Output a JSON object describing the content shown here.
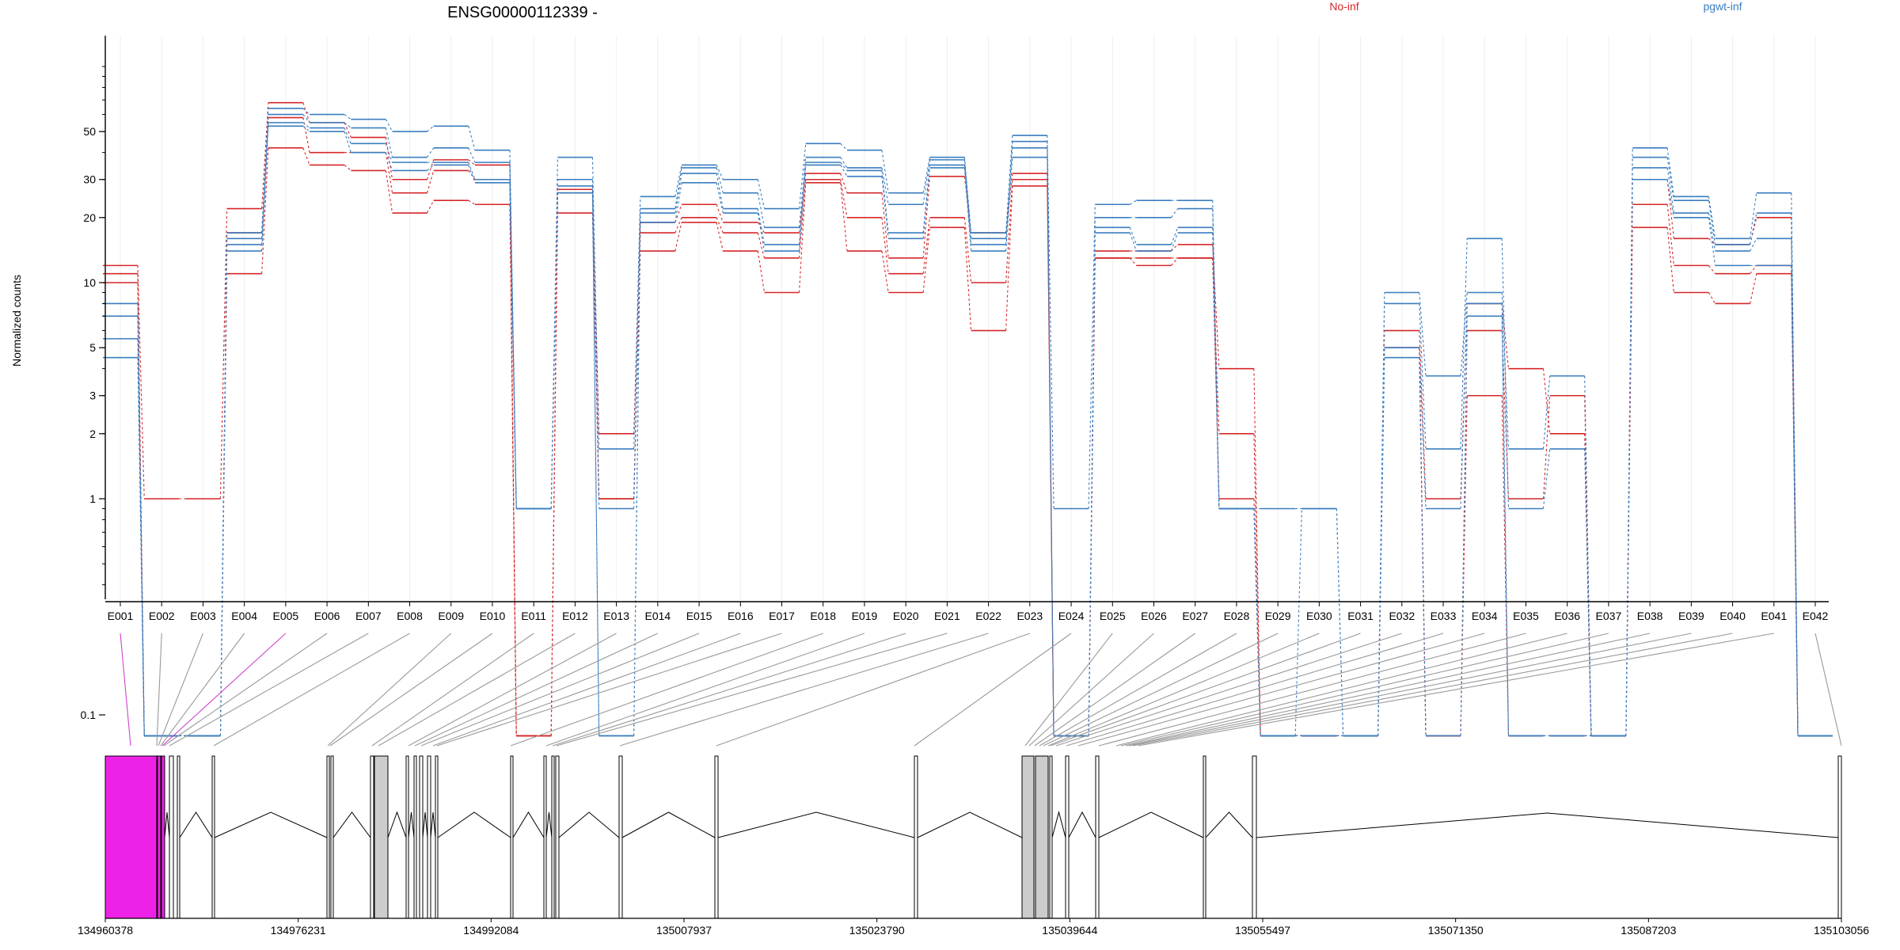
{
  "chart_data": {
    "type": "line",
    "title": "ENSG00000112339 -",
    "ylabel": "Normalized counts",
    "xlabel": "",
    "y_scale": "log",
    "ylim": [
      0.08,
      100
    ],
    "yticks": [
      0.1,
      1,
      2,
      3,
      5,
      10,
      20,
      30,
      50
    ],
    "yticklabels": [
      "0.1",
      "1",
      "2",
      "3",
      "5",
      "10",
      "20",
      "30",
      "50"
    ],
    "grid": true,
    "legend": [
      {
        "label": "No-inf",
        "color": "#d62728"
      },
      {
        "label": "pgwt-inf",
        "color": "#3a7dbf"
      }
    ],
    "legend_position": "top",
    "categories": [
      "E001",
      "E002",
      "E003",
      "E004",
      "E005",
      "E006",
      "E007",
      "E008",
      "E009",
      "E010",
      "E011",
      "E012",
      "E013",
      "E014",
      "E015",
      "E016",
      "E017",
      "E018",
      "E019",
      "E020",
      "E021",
      "E022",
      "E023",
      "E024",
      "E025",
      "E026",
      "E027",
      "E028",
      "E029",
      "E030",
      "E031",
      "E032",
      "E033",
      "E034",
      "E035",
      "E036",
      "E037",
      "E038",
      "E039",
      "E040",
      "E041",
      "E042"
    ],
    "series": [
      {
        "group": "No-inf",
        "color": "#d62728",
        "values": [
          12,
          1,
          1,
          22,
          68,
          55,
          47,
          30,
          37,
          35,
          0.08,
          27,
          2,
          19,
          23,
          19,
          17,
          32,
          26,
          13,
          31,
          17,
          32,
          0.08,
          14,
          14,
          15,
          4,
          0.08,
          0.08,
          0.08,
          6,
          1,
          8,
          4,
          2,
          0.08,
          30,
          16,
          15,
          20,
          0.08
        ]
      },
      {
        "group": "No-inf",
        "color": "#d62728",
        "values": [
          11,
          0.08,
          0.08,
          17,
          58,
          40,
          40,
          26,
          33,
          30,
          0.08,
          26,
          1,
          17,
          20,
          17,
          13,
          30,
          20,
          11,
          20,
          10,
          30,
          0.08,
          13,
          13,
          13,
          2,
          0.08,
          0.08,
          0.08,
          5,
          0.08,
          6,
          1,
          3,
          0.08,
          23,
          12,
          11,
          12,
          0.08
        ]
      },
      {
        "group": "No-inf",
        "color": "#d62728",
        "values": [
          10,
          0.08,
          0.08,
          11,
          42,
          35,
          33,
          21,
          24,
          23,
          0.08,
          21,
          1,
          14,
          19,
          14,
          9,
          29,
          14,
          9,
          18,
          6,
          28,
          0.08,
          13,
          12,
          13,
          1,
          0.08,
          0.08,
          0.08,
          5,
          0.08,
          3,
          0.08,
          0.08,
          0.08,
          18,
          9,
          8,
          11,
          0.08
        ]
      },
      {
        "group": "pgwt-inf",
        "color": "#3a7dbf",
        "values": [
          8,
          0.08,
          0.08,
          17,
          64,
          60,
          57,
          50,
          53,
          41,
          0.9,
          38,
          1.7,
          25,
          35,
          30,
          22,
          44,
          41,
          26,
          38,
          17,
          48,
          0.9,
          23,
          24,
          24,
          0.9,
          0.9,
          0.9,
          0.08,
          9,
          3.7,
          9,
          1.7,
          3.7,
          0.08,
          42,
          25,
          16,
          26,
          0.08
        ]
      },
      {
        "group": "pgwt-inf",
        "color": "#3a7dbf",
        "values": [
          7,
          0.08,
          0.08,
          16,
          60,
          55,
          52,
          38,
          42,
          36,
          0.9,
          30,
          0.9,
          22,
          34,
          26,
          18,
          38,
          34,
          23,
          37,
          16,
          45,
          0.08,
          20,
          20,
          22,
          0.9,
          0.08,
          0.9,
          0.08,
          8,
          1.7,
          16,
          0.9,
          1.7,
          0.08,
          38,
          24,
          15,
          21,
          0.08
        ]
      },
      {
        "group": "pgwt-inf",
        "color": "#3a7dbf",
        "values": [
          5.5,
          0.08,
          0.08,
          15,
          55,
          52,
          44,
          36,
          36,
          30,
          0.9,
          28,
          0.08,
          21,
          32,
          22,
          15,
          36,
          33,
          17,
          35,
          15,
          42,
          0.08,
          18,
          15,
          18,
          0.9,
          0.08,
          0.08,
          0.08,
          5,
          0.9,
          8,
          0.08,
          0.08,
          0.08,
          34,
          21,
          14,
          16,
          0.08
        ]
      },
      {
        "group": "pgwt-inf",
        "color": "#3a7dbf",
        "values": [
          4.5,
          0.08,
          0.08,
          14,
          53,
          50,
          40,
          33,
          35,
          29,
          0.9,
          26,
          0.08,
          19,
          29,
          21,
          14,
          35,
          31,
          16,
          34,
          14,
          38,
          0.08,
          17,
          14,
          17,
          0.9,
          0.08,
          0.08,
          0.08,
          4.5,
          0.08,
          7,
          0.08,
          0.08,
          0.08,
          30,
          20,
          12,
          12,
          0.08
        ]
      }
    ],
    "genomic_axis": {
      "ticklabels": [
        "134960378",
        "134976231",
        "134992084",
        "135007937",
        "135023790",
        "135039644",
        "135055497",
        "135071350",
        "135087203",
        "135103056"
      ]
    }
  }
}
